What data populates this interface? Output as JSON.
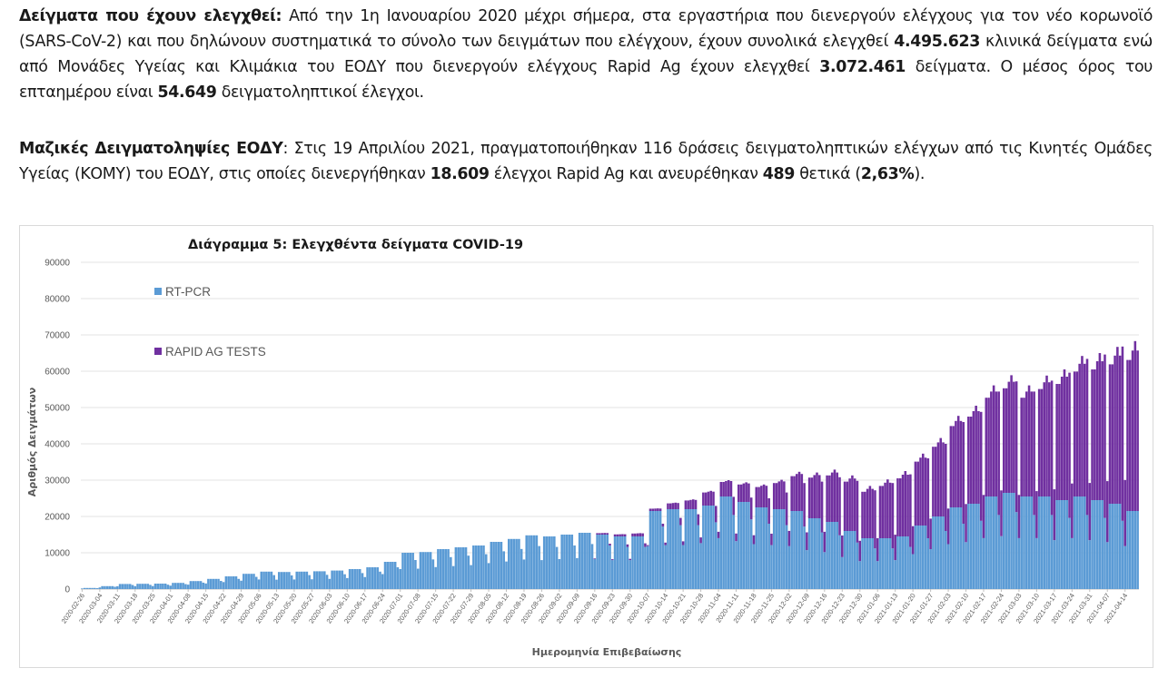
{
  "report": {
    "p1": {
      "lead": "Δείγματα που έχουν ελεγχθεί:",
      "t1": " Από την 1η Ιανουαρίου 2020 μέχρι σήμερα, στα εργαστήρια που διενεργούν ελέγχους για τον νέο κορωνοϊό (SARS-CoV-2) και που δηλώνουν συστηματικά το σύνολο των δειγμάτων που ελέγχουν, έχουν συνολικά ελεγχθεί ",
      "n1": "4.495.623",
      "t2": " κλινικά δείγματα ενώ από Μονάδες Υγείας και Κλιμάκια του ΕΟΔΥ που διενεργούν ελέγχους Rapid Ag έχουν ελεγχθεί ",
      "n2": "3.072.461",
      "t3": " δείγματα. Ο μέσος όρος του επταημέρου είναι ",
      "n3": "54.649",
      "t4": " δειγματοληπτικοί έλεγχοι."
    },
    "p2": {
      "lead": "Μαζικές Δειγματοληψίες ΕΟΔΥ",
      "t1": ": Στις 19 Απριλίου 2021, πραγματοποιήθηκαν 116 δράσεις δειγματοληπτικών ελέγχων από τις Κινητές Ομάδες Υγείας (ΚΟΜΥ) του ΕΟΔΥ, στις οποίες διενεργήθηκαν ",
      "n1": "18.609",
      "t2": " έλεγχοι Rapid Ag και ανευρέθηκαν ",
      "n2": "489",
      "t3": " θετικά (",
      "n3": "2,63%",
      "t4": ")."
    }
  },
  "chart_data": {
    "type": "bar",
    "stacked": true,
    "title": "Διάγραμμα 5: Ελεγχθέντα δείγματα COVID-19",
    "xlabel": "Ημερομηνία Επιβεβαίωσης",
    "ylabel": "Αριθμός Δειγμάτων",
    "ylim": [
      0,
      90000
    ],
    "yticks": [
      "0",
      "10000",
      "20000",
      "30000",
      "40000",
      "50000",
      "60000",
      "70000",
      "80000",
      "90000"
    ],
    "x_start": "2020-02-26",
    "x_end": "2021-04-19",
    "x_tick_labels": [
      "2020-02-26",
      "2020-03-04",
      "2020-03-11",
      "2020-03-18",
      "2020-03-25",
      "2020-04-01",
      "2020-04-08",
      "2020-04-15",
      "2020-04-22",
      "2020-04-29",
      "2020-05-06",
      "2020-05-13",
      "2020-05-20",
      "2020-05-27",
      "2020-06-03",
      "2020-06-10",
      "2020-06-17",
      "2020-06-24",
      "2020-07-01",
      "2020-07-08",
      "2020-07-15",
      "2020-07-22",
      "2020-07-29",
      "2020-08-05",
      "2020-08-12",
      "2020-08-19",
      "2020-08-26",
      "2020-09-02",
      "2020-09-09",
      "2020-09-16",
      "2020-09-23",
      "2020-09-30",
      "2020-10-07",
      "2020-10-14",
      "2020-10-21",
      "2020-10-28",
      "2020-11-04",
      "2020-11-11",
      "2020-11-18",
      "2020-11-25",
      "2020-12-02",
      "2020-12-09",
      "2020-12-16",
      "2020-12-23",
      "2020-12-30",
      "2021-01-06",
      "2021-01-13",
      "2021-01-20",
      "2021-01-27",
      "2021-02-03",
      "2021-02-10",
      "2021-02-17",
      "2021-02-24",
      "2021-03-03",
      "2021-03-10",
      "2021-03-17",
      "2021-03-24",
      "2021-03-31",
      "2021-04-07",
      "2021-04-14"
    ],
    "legend_position": "top-left",
    "series": [
      {
        "name": "RT-PCR",
        "color": "#5b9bd5",
        "weekly_profile": [
          0.55,
          1.0,
          1.0,
          1.0,
          1.0,
          1.0,
          0.8
        ],
        "weekly_levels": [
          300,
          800,
          1400,
          1450,
          1500,
          1700,
          2200,
          2800,
          3500,
          4200,
          4800,
          4700,
          4800,
          4900,
          5100,
          5500,
          6000,
          7500,
          10000,
          10200,
          11000,
          11500,
          12000,
          13000,
          13800,
          14800,
          14500,
          15000,
          15500,
          15000,
          14500,
          14500,
          21500,
          22000,
          22000,
          23000,
          25500,
          24000,
          22500,
          22000,
          21500,
          19500,
          18500,
          16000,
          14000,
          14000,
          14500,
          17500,
          20000,
          22500,
          23500,
          25500,
          26500,
          25500,
          25500,
          24500,
          25500,
          24500,
          23500,
          21500
        ]
      },
      {
        "name": "RAPID AG TESTS",
        "color": "#7030a0",
        "weekly_profile": [
          0.35,
          0.8,
          0.8,
          0.85,
          0.9,
          0.85,
          1.0
        ],
        "weekly_levels": [
          0,
          0,
          0,
          0,
          0,
          0,
          0,
          0,
          0,
          0,
          0,
          0,
          0,
          0,
          0,
          0,
          0,
          0,
          0,
          0,
          0,
          0,
          0,
          0,
          0,
          0,
          0,
          0,
          0,
          500,
          700,
          1000,
          800,
          2000,
          3000,
          4500,
          5000,
          6000,
          7000,
          9000,
          12000,
          14000,
          16000,
          17000,
          16000,
          18000,
          20000,
          22000,
          24000,
          28000,
          30000,
          34000,
          36000,
          34000,
          37000,
          40000,
          43000,
          45000,
          48000,
          52000
        ]
      }
    ]
  }
}
